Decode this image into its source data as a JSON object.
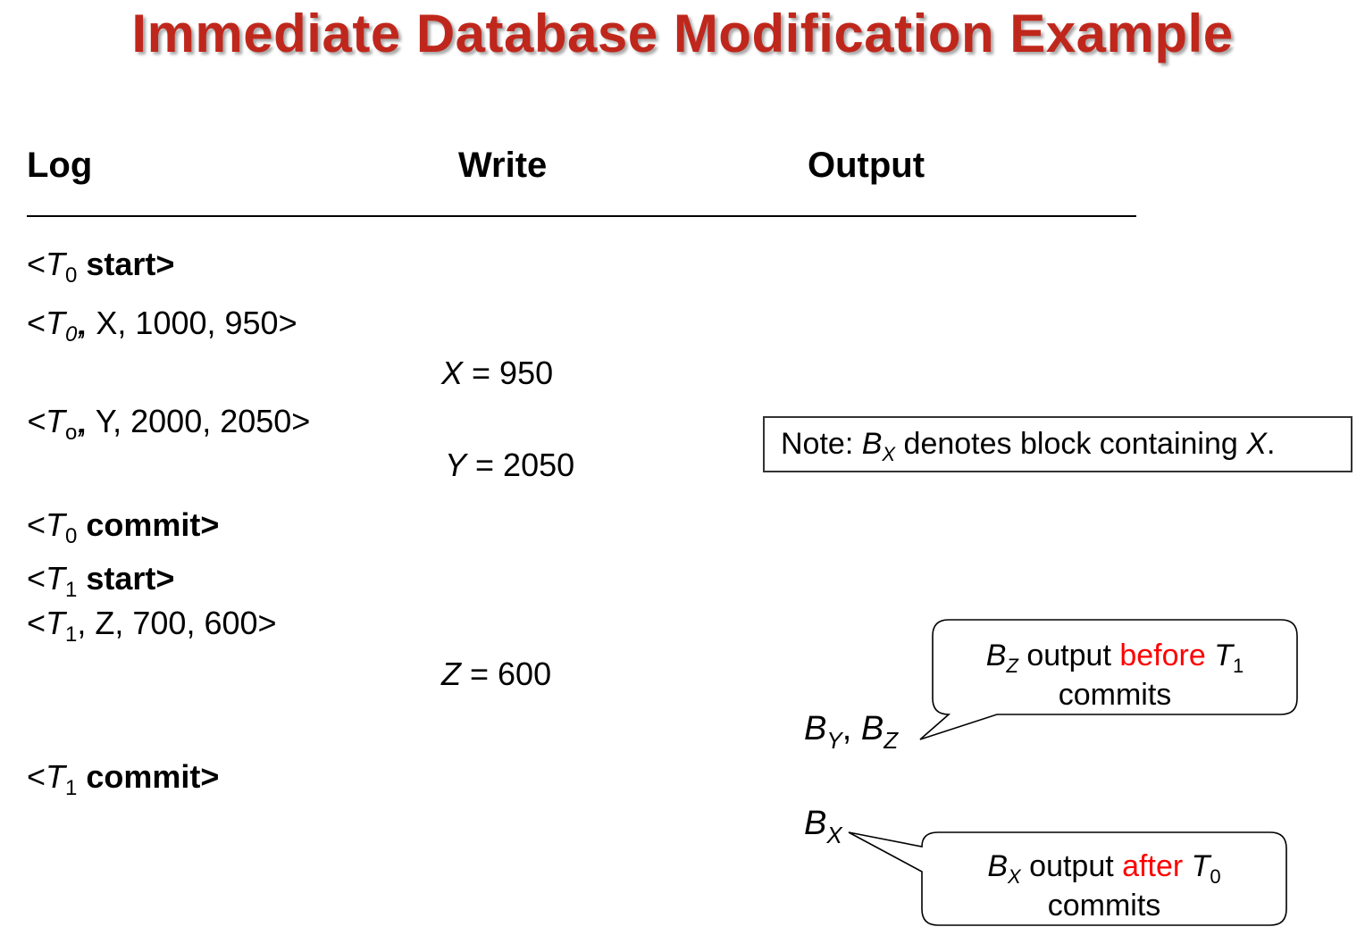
{
  "title": "Immediate Database Modification Example",
  "colors": {
    "title": "#c0271c",
    "highlight": "#ff0000",
    "text": "#000000"
  },
  "headers": {
    "log": "Log",
    "write": "Write",
    "output": "Output"
  },
  "log": {
    "r1": {
      "open": "<",
      "T": "T",
      "sub": "0",
      "rest": " start>"
    },
    "r2": {
      "open": "<",
      "T": "T",
      "sub": "0",
      "rest": ", X, 1000, 950>"
    },
    "r3": {
      "open": "<",
      "T": "T",
      "sub": "o",
      "rest": ", Y, 2000, 2050>"
    },
    "r4": {
      "open": "<",
      "T": "T",
      "sub": "0",
      "rest": " commit>"
    },
    "r5": {
      "open": "<",
      "T": "T",
      "sub": "1",
      "rest": " start>"
    },
    "r6": {
      "open": "<",
      "T": "T",
      "sub": "1",
      "rest": ", Z, 700, 600>"
    },
    "r7": {
      "open": "<",
      "T": "T",
      "sub": "1",
      "rest": " commit>"
    }
  },
  "writes": {
    "w1": {
      "var": "X",
      "rest": " = 950"
    },
    "w2": {
      "var": "Y",
      "rest": " = 2050"
    },
    "w3": {
      "var": "Z",
      "rest": " = 600"
    }
  },
  "note": {
    "prefix": "Note: ",
    "B": "B",
    "sub": "X",
    "middle": " denotes block containing ",
    "var": "X",
    "end": "."
  },
  "outputs": {
    "o1": {
      "b1": "B",
      "s1": "Y",
      "sep": ", ",
      "b2": "B",
      "s2": "Z"
    },
    "o2": {
      "b": "B",
      "s": "X"
    }
  },
  "callouts": {
    "c1": {
      "B": "B",
      "bsub": "Z",
      "pre": " output ",
      "hl": "before",
      "T": " T",
      "tsub": "1",
      "line2": "commits"
    },
    "c2": {
      "B": "B",
      "bsub": "X",
      "pre": " output ",
      "hl": "after",
      "T": " T",
      "tsub": "0",
      "line2": "commits"
    }
  }
}
